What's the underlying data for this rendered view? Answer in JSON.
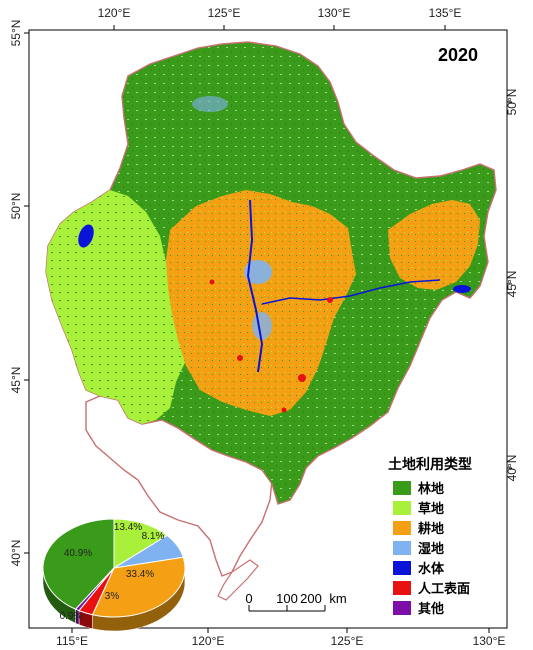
{
  "map": {
    "year": "2020",
    "colors": {
      "forest": "#3a9a1a",
      "grass": "#a8f03a",
      "farmland": "#f5a014",
      "wetland": "#7fb2f0",
      "water": "#0a14d8",
      "urban": "#e81010",
      "other": "#7a10a8",
      "boundary": "#c87070"
    }
  },
  "axes": {
    "top": [
      "120°E",
      "125°E",
      "130°E",
      "135°E"
    ],
    "bottom": [
      "115°E",
      "120°E",
      "125°E",
      "130°E"
    ],
    "left": [
      "55°N",
      "50°N",
      "45°N",
      "40°N"
    ],
    "right": [
      "50°N",
      "45°N",
      "40°N"
    ]
  },
  "legend": {
    "title": "土地利用类型",
    "items": [
      {
        "label": "林地",
        "color": "#3a9a1a"
      },
      {
        "label": "草地",
        "color": "#a8f03a"
      },
      {
        "label": "耕地",
        "color": "#f5a014"
      },
      {
        "label": "湿地",
        "color": "#7fb2f0"
      },
      {
        "label": "水体",
        "color": "#0a14d8"
      },
      {
        "label": "人工表面",
        "color": "#e81010"
      },
      {
        "label": "其他",
        "color": "#7a10a8"
      }
    ]
  },
  "scale_bar": {
    "ticks": [
      "0",
      "100",
      "200"
    ],
    "unit": "km"
  },
  "chart_data": {
    "type": "pie",
    "categories": [
      "林地",
      "草地",
      "湿地",
      "耕地",
      "人工表面",
      "其他"
    ],
    "values": [
      40.9,
      13.4,
      8.1,
      33.4,
      3.3,
      0.9
    ],
    "labels": [
      "40.9%",
      "13.4%",
      "8.1%",
      "33.4%",
      "3%",
      "0.9%"
    ],
    "colors": [
      "#3a9a1a",
      "#a8f03a",
      "#7fb2f0",
      "#f5a014",
      "#e81010",
      "#7a10a8"
    ]
  }
}
